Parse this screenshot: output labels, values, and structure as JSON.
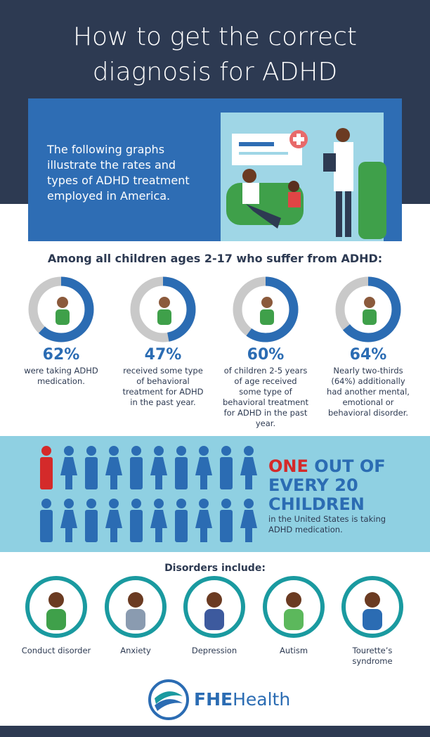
{
  "header": {
    "title": "How to get the correct diagnosis for ADHD"
  },
  "intro": {
    "text": "The following graphs illustrate the rates and types of ADHD treatment employed in America."
  },
  "stats": {
    "heading": "Among all children ages 2-17 who suffer from ADHD:",
    "items": [
      {
        "value": 62,
        "value_label": "62%",
        "text": "were taking ADHD medication."
      },
      {
        "value": 47,
        "value_label": "47%",
        "text": "received some type of behavioral treatment for ADHD in the past year."
      },
      {
        "value": 60,
        "value_label": "60%",
        "text": "of children 2-5 years of age received some type of behavioral treatment for ADHD in the past year."
      },
      {
        "value": 64,
        "value_label": "64%",
        "text": "Nearly two-thirds (64%) additionally had another mental, emotional or behavioral disorder."
      }
    ]
  },
  "banner": {
    "highlight": "ONE",
    "headline": "OUT OF EVERY 20 CHILDREN",
    "text": "in the United States is taking ADHD medication."
  },
  "disorders": {
    "heading": "Disorders include:",
    "items": [
      "Conduct disorder",
      "Anxiety",
      "Depression",
      "Autism",
      "Tourette’s syndrome"
    ]
  },
  "logo": {
    "strong": "FHE",
    "rest": "Health"
  }
}
